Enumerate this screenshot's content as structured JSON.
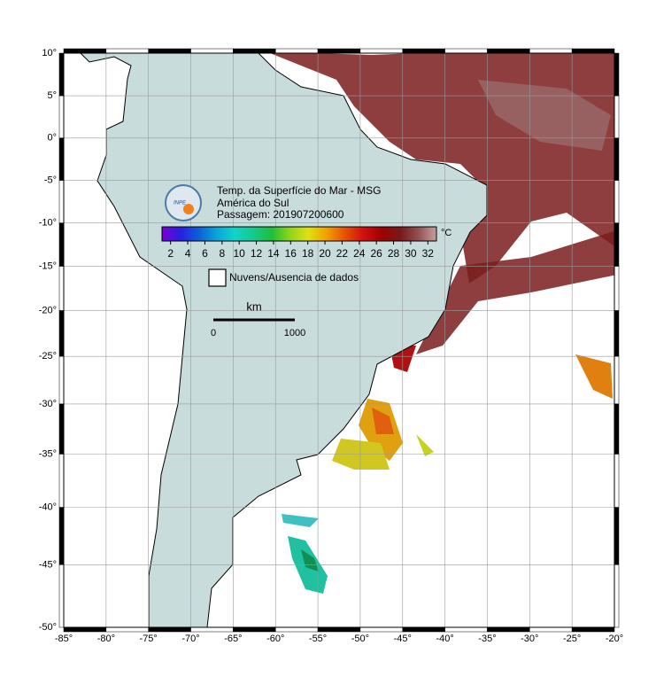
{
  "title": {
    "logo": "INPE",
    "lines": [
      "Temp. da Superfície do Mar - MSG",
      "América do Sul",
      "Passagem: 201907200600"
    ]
  },
  "colorbar": {
    "unit": "°C",
    "lim": [
      1,
      33
    ],
    "ticks": [
      2,
      4,
      6,
      8,
      10,
      12,
      14,
      16,
      18,
      20,
      22,
      24,
      26,
      28,
      30,
      32
    ],
    "colors": [
      "#7a00d6",
      "#2a1fe0",
      "#0b5fd8",
      "#0aa6d6",
      "#12d4c8",
      "#16c98a",
      "#1fbf3a",
      "#8fd61a",
      "#e0e010",
      "#f0a000",
      "#e85000",
      "#d01010",
      "#a00000",
      "#781818",
      "#905050",
      "#c8a0a0"
    ]
  },
  "legend": {
    "label": "Nuvens/Ausencia de dados"
  },
  "scale": {
    "unit": "km",
    "ticks": [
      "0",
      "1000"
    ]
  },
  "map": {
    "xlim": [
      -85,
      -20
    ],
    "ylim": [
      -50,
      10
    ],
    "xticks": [
      {
        "value": -85,
        "label": "-85°"
      },
      {
        "value": -80,
        "label": "-80°"
      },
      {
        "value": -75,
        "label": "-75°"
      },
      {
        "value": -70,
        "label": "-70°"
      },
      {
        "value": -65,
        "label": "-65°"
      },
      {
        "value": -60,
        "label": "-60°"
      },
      {
        "value": -55,
        "label": "-55°"
      },
      {
        "value": -50,
        "label": "-50°"
      },
      {
        "value": -45,
        "label": "-45°"
      },
      {
        "value": -40,
        "label": "-40°"
      },
      {
        "value": -35,
        "label": "-35°"
      },
      {
        "value": -30,
        "label": "-30°"
      },
      {
        "value": -25,
        "label": "-25°"
      },
      {
        "value": -20,
        "label": "-20°"
      }
    ],
    "yticks": [
      {
        "value": 10,
        "label": "10°"
      },
      {
        "value": 5,
        "label": "5°"
      },
      {
        "value": 0,
        "label": "0°"
      },
      {
        "value": -5,
        "label": "-5°"
      },
      {
        "value": -10,
        "label": "-10°"
      },
      {
        "value": -15,
        "label": "-15°"
      },
      {
        "value": -20,
        "label": "-20°"
      },
      {
        "value": -25,
        "label": "-25°"
      },
      {
        "value": -30,
        "label": "-30°"
      },
      {
        "value": -35,
        "label": "-35°"
      },
      {
        "value": -40,
        "label": "-40°"
      },
      {
        "value": -45,
        "label": "-45°"
      },
      {
        "value": -50,
        "label": "-50°"
      }
    ]
  }
}
